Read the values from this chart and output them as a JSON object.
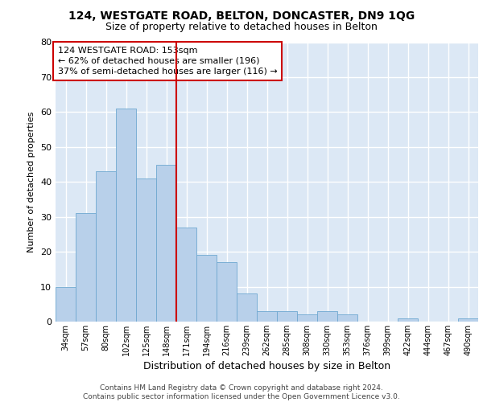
{
  "title1": "124, WESTGATE ROAD, BELTON, DONCASTER, DN9 1QG",
  "title2": "Size of property relative to detached houses in Belton",
  "xlabel": "Distribution of detached houses by size in Belton",
  "ylabel": "Number of detached properties",
  "footnote1": "Contains HM Land Registry data © Crown copyright and database right 2024.",
  "footnote2": "Contains public sector information licensed under the Open Government Licence v3.0.",
  "annotation_line1": "124 WESTGATE ROAD: 153sqm",
  "annotation_line2": "← 62% of detached houses are smaller (196)",
  "annotation_line3": "37% of semi-detached houses are larger (116) →",
  "bar_values": [
    10,
    31,
    43,
    61,
    41,
    45,
    27,
    19,
    17,
    8,
    3,
    3,
    2,
    3,
    2,
    0,
    0,
    1,
    0,
    0,
    1
  ],
  "bar_labels": [
    "34sqm",
    "57sqm",
    "80sqm",
    "102sqm",
    "125sqm",
    "148sqm",
    "171sqm",
    "194sqm",
    "216sqm",
    "239sqm",
    "262sqm",
    "285sqm",
    "308sqm",
    "330sqm",
    "353sqm",
    "376sqm",
    "399sqm",
    "422sqm",
    "444sqm",
    "467sqm",
    "490sqm"
  ],
  "bar_color": "#b8d0ea",
  "bar_edge_color": "#6fa8d0",
  "vline_x": 5.5,
  "vline_color": "#cc0000",
  "ylim": [
    0,
    80
  ],
  "yticks": [
    0,
    10,
    20,
    30,
    40,
    50,
    60,
    70,
    80
  ],
  "background_color": "#dce8f5",
  "grid_color": "#ffffff",
  "title_fontsize": 10,
  "subtitle_fontsize": 9,
  "xlabel_fontsize": 9,
  "ylabel_fontsize": 8,
  "tick_fontsize": 7,
  "annotation_fontsize": 8,
  "footnote_fontsize": 6.5
}
